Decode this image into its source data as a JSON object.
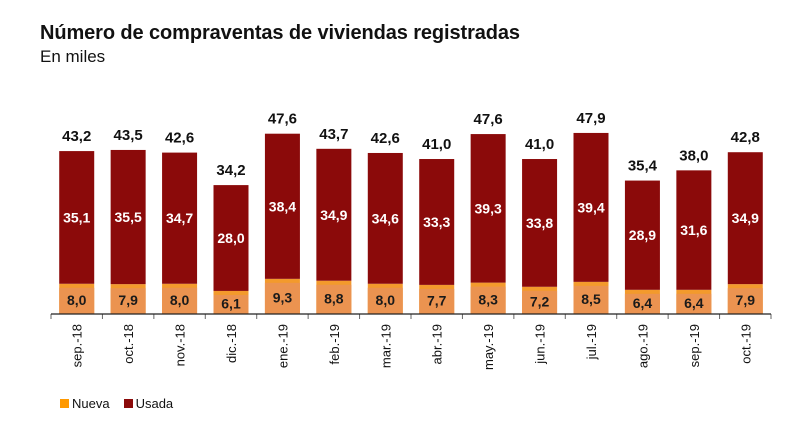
{
  "chart_data": {
    "type": "bar",
    "stacked": true,
    "title": "Número de compraventas de viviendas registradas",
    "subtitle": "En miles",
    "xlabel": "",
    "ylabel": "",
    "ylim": [
      0,
      50
    ],
    "grid": false,
    "legend_position": "bottom-left",
    "categories": [
      "sep.-18",
      "oct.-18",
      "nov.-18",
      "dic.-18",
      "ene.-19",
      "feb.-19",
      "mar.-19",
      "abr.-19",
      "may.-19",
      "jun.-19",
      "jul.-19",
      "ago.-19",
      "sep.-19",
      "oct.-19"
    ],
    "series": [
      {
        "name": "Nueva",
        "color": "#F39A2C",
        "label_bg": "#EB9350",
        "values": [
          8.0,
          7.9,
          8.0,
          6.1,
          9.3,
          8.8,
          8.0,
          7.7,
          8.3,
          7.2,
          8.5,
          6.4,
          6.4,
          7.9
        ],
        "labels": [
          "8,0",
          "7,9",
          "8,0",
          "6,1",
          "9,3",
          "8,8",
          "8,0",
          "7,7",
          "8,3",
          "7,2",
          "8,5",
          "6,4",
          "6,4",
          "7,9"
        ]
      },
      {
        "name": "Usada",
        "color": "#8B0A0A",
        "values": [
          35.1,
          35.5,
          34.7,
          28.0,
          38.4,
          34.9,
          34.6,
          33.3,
          39.3,
          33.8,
          39.4,
          28.9,
          31.6,
          34.9
        ],
        "labels": [
          "35,1",
          "35,5",
          "34,7",
          "28,0",
          "38,4",
          "34,9",
          "34,6",
          "33,3",
          "39,3",
          "33,8",
          "39,4",
          "28,9",
          "31,6",
          "34,9"
        ]
      }
    ],
    "totals": [
      43.2,
      43.5,
      42.6,
      34.2,
      47.6,
      43.7,
      42.6,
      41.0,
      47.6,
      41.0,
      47.9,
      35.4,
      38.0,
      42.8
    ],
    "total_labels": [
      "43,2",
      "43,5",
      "42,6",
      "34,2",
      "47,6",
      "43,7",
      "42,6",
      "41,0",
      "47,6",
      "41,0",
      "47,9",
      "35,4",
      "38,0",
      "42,8"
    ]
  },
  "legend": {
    "items": [
      {
        "label": "Nueva",
        "color": "#FF9900"
      },
      {
        "label": "Usada",
        "color": "#8B0A0A"
      }
    ]
  }
}
